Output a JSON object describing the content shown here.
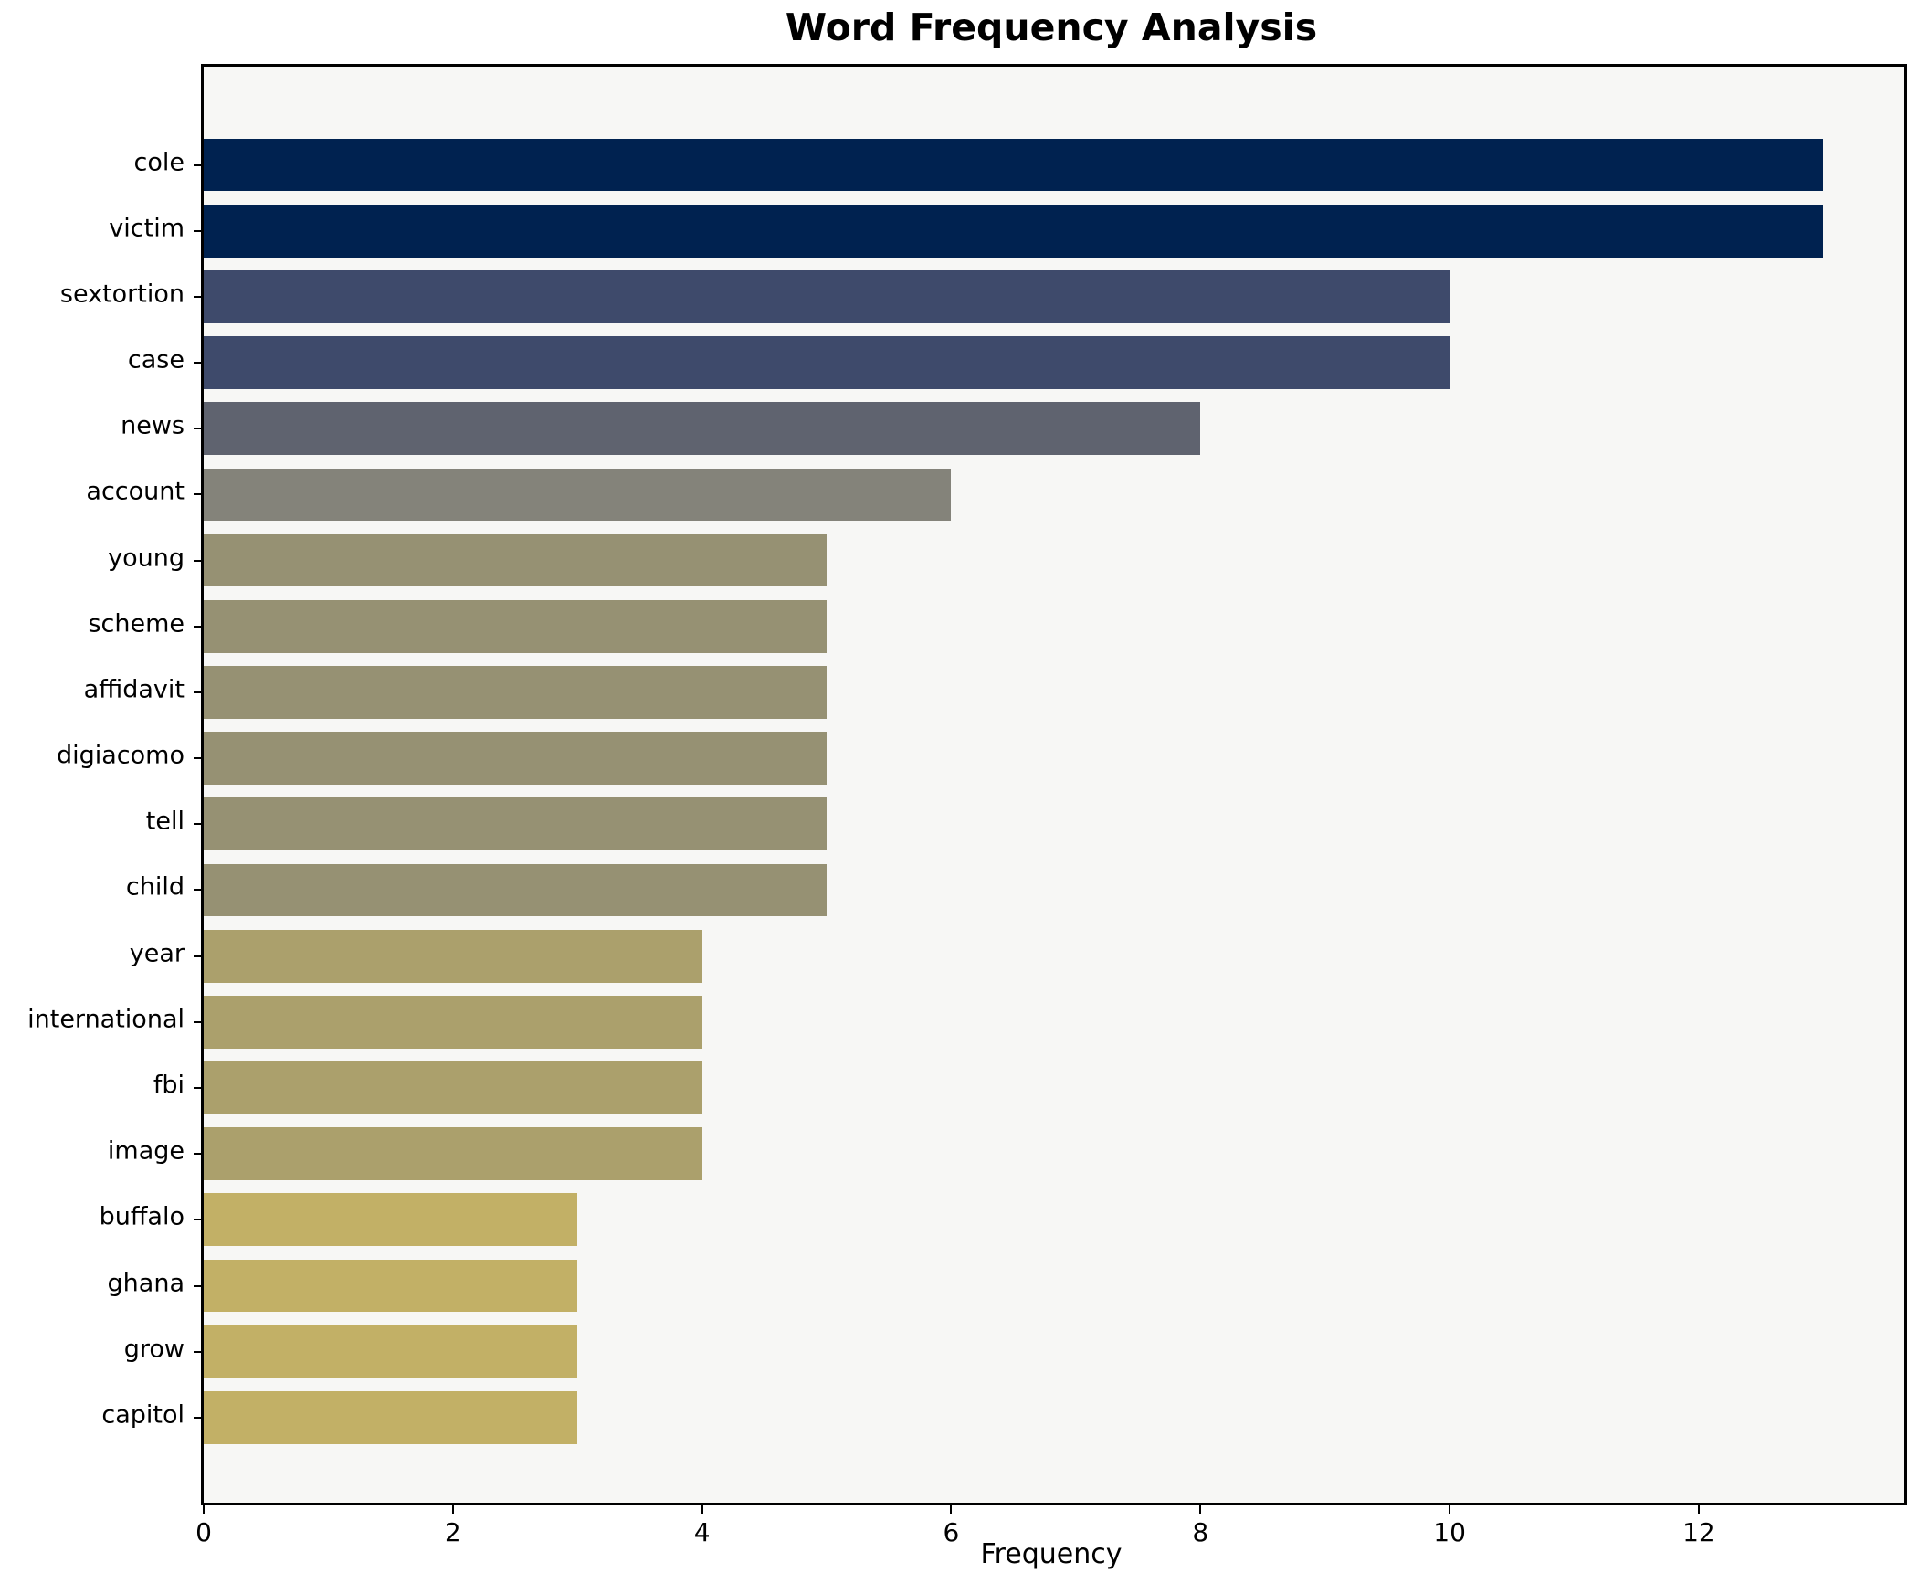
{
  "chart_data": {
    "type": "bar",
    "orientation": "horizontal",
    "title": "Word Frequency Analysis",
    "xlabel": "Frequency",
    "ylabel": "",
    "categories": [
      "cole",
      "victim",
      "sextortion",
      "case",
      "news",
      "account",
      "young",
      "scheme",
      "affidavit",
      "digiacomo",
      "tell",
      "child",
      "year",
      "international",
      "fbi",
      "image",
      "buffalo",
      "ghana",
      "grow",
      "capitol"
    ],
    "values": [
      13,
      13,
      10,
      10,
      8,
      6,
      5,
      5,
      5,
      5,
      5,
      5,
      4,
      4,
      4,
      4,
      3,
      3,
      3,
      3
    ],
    "bar_colors": [
      "#002250",
      "#002250",
      "#3e4a6b",
      "#3e4a6b",
      "#5f636f",
      "#84837a",
      "#969173",
      "#969173",
      "#969173",
      "#969173",
      "#969173",
      "#969173",
      "#aba06c",
      "#aba06c",
      "#aba06c",
      "#aba06c",
      "#c2b066",
      "#c2b066",
      "#c2b066",
      "#c2b066"
    ],
    "xlim": [
      0,
      13.65
    ],
    "xticks": [
      0,
      2,
      4,
      6,
      8,
      10,
      12
    ],
    "grid": false,
    "legend": null,
    "plot_bg": "#f7f7f5",
    "figure_bg": "#ffffff",
    "spine_color": "#000000",
    "bar_band_total_units": 21.78,
    "bar_margin_units": 0.99,
    "bar_height_fraction": 0.8
  }
}
